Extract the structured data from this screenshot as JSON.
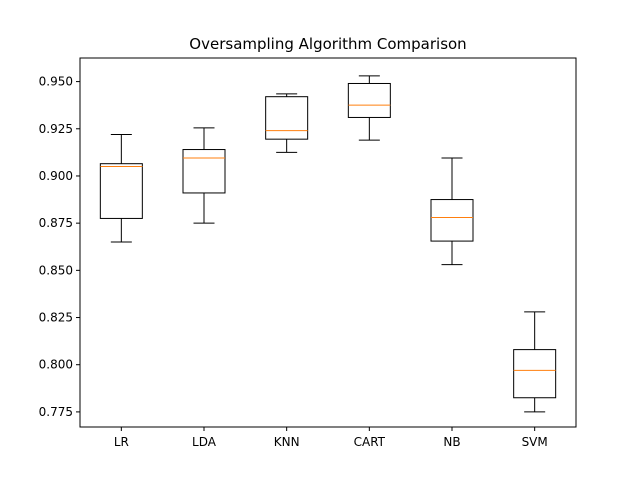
{
  "chart_data": {
    "type": "box",
    "title": "Oversampling Algorithm Comparison",
    "xlabel": "",
    "ylabel": "",
    "ylim": [
      0.767,
      0.9625
    ],
    "y_ticks": [
      0.775,
      0.8,
      0.825,
      0.85,
      0.875,
      0.9,
      0.925,
      0.95
    ],
    "y_tick_labels": [
      "0.775",
      "0.800",
      "0.825",
      "0.850",
      "0.875",
      "0.900",
      "0.925",
      "0.950"
    ],
    "categories": [
      "LR",
      "LDA",
      "KNN",
      "CART",
      "NB",
      "SVM"
    ],
    "boxes": [
      {
        "category": "LR",
        "whisker_low": 0.865,
        "q1": 0.8775,
        "median": 0.905,
        "q3": 0.9065,
        "whisker_high": 0.922
      },
      {
        "category": "LDA",
        "whisker_low": 0.875,
        "q1": 0.891,
        "median": 0.9095,
        "q3": 0.914,
        "whisker_high": 0.9255
      },
      {
        "category": "KNN",
        "whisker_low": 0.9125,
        "q1": 0.9195,
        "median": 0.924,
        "q3": 0.942,
        "whisker_high": 0.9435
      },
      {
        "category": "CART",
        "whisker_low": 0.919,
        "q1": 0.931,
        "median": 0.9375,
        "q3": 0.949,
        "whisker_high": 0.953
      },
      {
        "category": "NB",
        "whisker_low": 0.853,
        "q1": 0.8655,
        "median": 0.878,
        "q3": 0.8875,
        "whisker_high": 0.9095
      },
      {
        "category": "SVM",
        "whisker_low": 0.775,
        "q1": 0.7825,
        "median": 0.797,
        "q3": 0.808,
        "whisker_high": 0.828
      }
    ],
    "colors": {
      "box": "#000000",
      "median": "#ff7f0e"
    },
    "grid": false,
    "legend": "none"
  }
}
